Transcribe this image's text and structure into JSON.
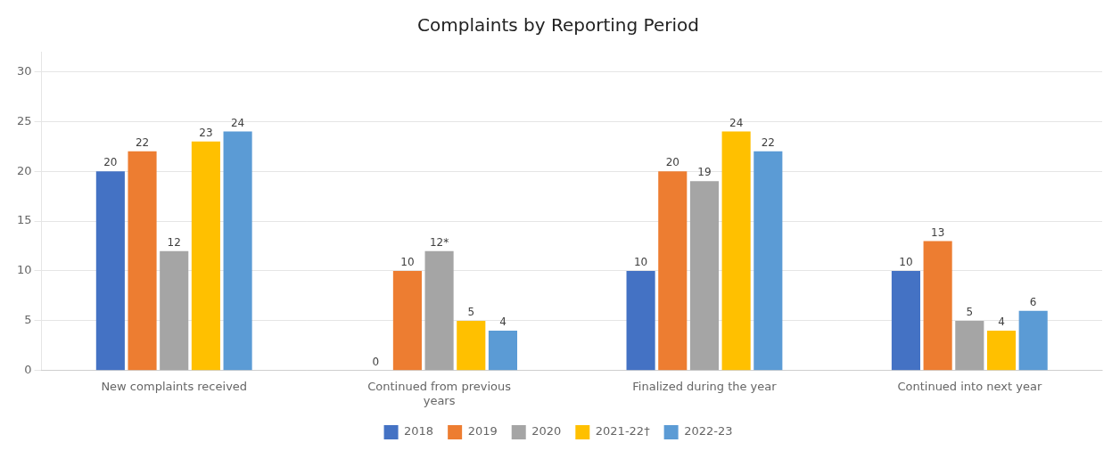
{
  "chart_data": {
    "type": "bar",
    "title": "Complaints by Reporting Period",
    "categories": [
      "New complaints received",
      "Continued from previous\nyears",
      "Finalized during the year",
      "Continued into next year"
    ],
    "series": [
      {
        "name": "2018",
        "color": "#4472C4",
        "values": [
          20,
          0,
          10,
          10
        ]
      },
      {
        "name": "2019",
        "color": "#ED7D31",
        "values": [
          22,
          10,
          20,
          13
        ]
      },
      {
        "name": "2020",
        "color": "#A5A5A5",
        "values": [
          12,
          12,
          19,
          5
        ],
        "value_labels": [
          "12",
          "12*",
          "19",
          "5"
        ]
      },
      {
        "name": "2021-22†",
        "color": "#FFC000",
        "values": [
          23,
          5,
          24,
          4
        ]
      },
      {
        "name": "2022-23",
        "color": "#5B9BD5",
        "values": [
          24,
          4,
          22,
          6
        ]
      }
    ],
    "ylim": [
      0,
      32
    ],
    "yticks": [
      0,
      5,
      10,
      15,
      20,
      25,
      30
    ],
    "grid": true,
    "legend": "bottom",
    "data_labels": true
  }
}
